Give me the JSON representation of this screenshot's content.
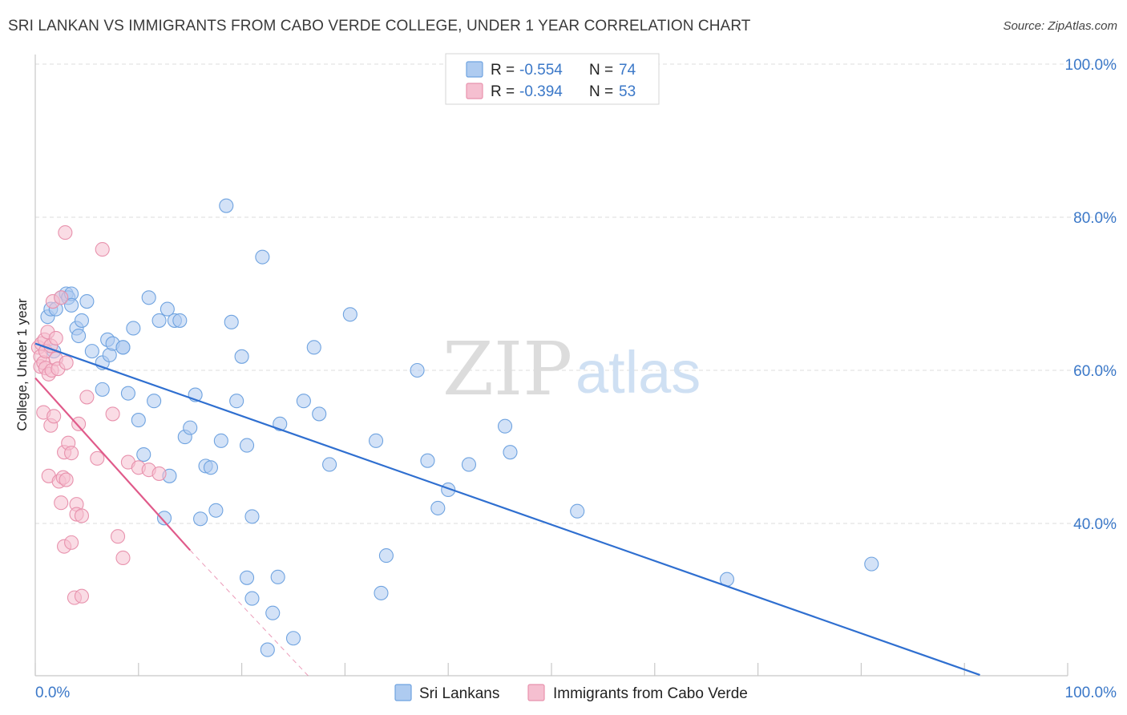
{
  "chart_data": {
    "type": "scatter",
    "title": "SRI LANKAN VS IMMIGRANTS FROM CABO VERDE COLLEGE, UNDER 1 YEAR CORRELATION CHART",
    "source": "Source: ZipAtlas.com",
    "xlabel": "",
    "ylabel": "College, Under 1 year",
    "xlim": [
      0,
      100
    ],
    "ylim": [
      20,
      101
    ],
    "x_tick_labels": [
      {
        "value": 0,
        "label": "0.0%"
      },
      {
        "value": 100,
        "label": "100.0%"
      }
    ],
    "y_tick_labels": [
      {
        "value": 40,
        "label": "40.0%"
      },
      {
        "value": 60,
        "label": "60.0%"
      },
      {
        "value": 80,
        "label": "80.0%"
      },
      {
        "value": 100,
        "label": "100.0%"
      }
    ],
    "watermark": {
      "part1": "ZIP",
      "part2": "atlas"
    },
    "legend": {
      "r_label": "R =",
      "n_label": "N =",
      "entries": [
        {
          "name": "Sri Lankans",
          "r": "-0.554",
          "n": "74"
        },
        {
          "name": "Immigrants from Cabo Verde",
          "r": "-0.394",
          "n": "53"
        }
      ]
    },
    "series": [
      {
        "name": "Sri Lankans",
        "color": "#6fa3e0",
        "fill": "#aecbf0",
        "line_color": "#2f6fd0",
        "trend": {
          "x": [
            0,
            91.5
          ],
          "y": [
            63.5,
            20.2
          ]
        },
        "points": [
          [
            1.2,
            67.0
          ],
          [
            1.5,
            68.0
          ],
          [
            1.8,
            62.5
          ],
          [
            2.0,
            68.0
          ],
          [
            2.5,
            69.5
          ],
          [
            3.0,
            70.0
          ],
          [
            3.2,
            69.5
          ],
          [
            3.5,
            70.0
          ],
          [
            3.5,
            68.5
          ],
          [
            4.0,
            65.5
          ],
          [
            4.2,
            64.5
          ],
          [
            4.5,
            66.5
          ],
          [
            5.0,
            69.0
          ],
          [
            5.5,
            62.5
          ],
          [
            6.5,
            61.0
          ],
          [
            6.5,
            57.5
          ],
          [
            7.0,
            64.0
          ],
          [
            7.2,
            62.0
          ],
          [
            7.5,
            63.5
          ],
          [
            8.5,
            63.0
          ],
          [
            8.5,
            63.0
          ],
          [
            9.0,
            57.0
          ],
          [
            9.5,
            65.5
          ],
          [
            10.0,
            53.5
          ],
          [
            10.5,
            49.0
          ],
          [
            11.0,
            69.5
          ],
          [
            11.5,
            56.0
          ],
          [
            12.0,
            66.5
          ],
          [
            12.5,
            40.7
          ],
          [
            12.8,
            68.0
          ],
          [
            13.0,
            46.2
          ],
          [
            13.5,
            66.5
          ],
          [
            14.0,
            66.5
          ],
          [
            14.5,
            51.3
          ],
          [
            15.0,
            52.5
          ],
          [
            15.5,
            56.8
          ],
          [
            16.0,
            40.6
          ],
          [
            16.5,
            47.5
          ],
          [
            17.0,
            47.3
          ],
          [
            17.5,
            41.7
          ],
          [
            18.0,
            50.8
          ],
          [
            18.5,
            81.5
          ],
          [
            19.0,
            66.3
          ],
          [
            19.5,
            56.0
          ],
          [
            20.0,
            61.8
          ],
          [
            20.5,
            50.2
          ],
          [
            20.5,
            32.9
          ],
          [
            21.0,
            40.9
          ],
          [
            21.0,
            30.2
          ],
          [
            22.0,
            74.8
          ],
          [
            22.5,
            23.5
          ],
          [
            23.0,
            28.3
          ],
          [
            23.5,
            33.0
          ],
          [
            23.7,
            53.0
          ],
          [
            25.0,
            25.0
          ],
          [
            26.0,
            56.0
          ],
          [
            27.0,
            63.0
          ],
          [
            27.5,
            54.3
          ],
          [
            28.5,
            47.7
          ],
          [
            30.5,
            67.3
          ],
          [
            33.0,
            50.8
          ],
          [
            33.5,
            30.9
          ],
          [
            34.0,
            35.8
          ],
          [
            37.0,
            60.0
          ],
          [
            38.0,
            48.2
          ],
          [
            39.0,
            42.0
          ],
          [
            40.0,
            44.4
          ],
          [
            42.0,
            47.7
          ],
          [
            45.5,
            52.7
          ],
          [
            46.0,
            49.3
          ],
          [
            52.5,
            41.6
          ],
          [
            67.0,
            32.7
          ],
          [
            81.0,
            34.7
          ]
        ]
      },
      {
        "name": "Immigrants from Cabo Verde",
        "color": "#e892ad",
        "fill": "#f5bfd0",
        "line_color": "#e05a8a",
        "trend": {
          "x": [
            0,
            15
          ],
          "y": [
            59.0,
            36.5
          ]
        },
        "trend_dashed": {
          "x": [
            15,
            26.5
          ],
          "y": [
            36.5,
            20
          ]
        },
        "points": [
          [
            0.3,
            63.0
          ],
          [
            0.5,
            61.8
          ],
          [
            0.5,
            60.5
          ],
          [
            0.6,
            63.5
          ],
          [
            0.8,
            61.0
          ],
          [
            0.8,
            54.5
          ],
          [
            0.9,
            64.0
          ],
          [
            1.0,
            62.5
          ],
          [
            1.0,
            60.3
          ],
          [
            1.2,
            65.0
          ],
          [
            1.3,
            59.5
          ],
          [
            1.3,
            46.2
          ],
          [
            1.5,
            52.8
          ],
          [
            1.5,
            63.2
          ],
          [
            1.6,
            60.0
          ],
          [
            1.7,
            69.0
          ],
          [
            1.8,
            54.0
          ],
          [
            2.0,
            61.5
          ],
          [
            2.0,
            64.2
          ],
          [
            2.2,
            60.2
          ],
          [
            2.3,
            45.5
          ],
          [
            2.5,
            69.5
          ],
          [
            2.5,
            42.7
          ],
          [
            2.7,
            46.0
          ],
          [
            2.8,
            49.3
          ],
          [
            2.8,
            37.0
          ],
          [
            2.9,
            78.0
          ],
          [
            3.0,
            45.7
          ],
          [
            3.0,
            61.0
          ],
          [
            3.2,
            50.5
          ],
          [
            3.5,
            49.2
          ],
          [
            3.5,
            37.5
          ],
          [
            3.8,
            30.3
          ],
          [
            4.0,
            42.5
          ],
          [
            4.0,
            41.2
          ],
          [
            4.2,
            53.0
          ],
          [
            4.5,
            41.0
          ],
          [
            4.5,
            30.5
          ],
          [
            5.0,
            56.5
          ],
          [
            6.0,
            48.5
          ],
          [
            6.5,
            75.8
          ],
          [
            7.5,
            54.3
          ],
          [
            8.0,
            38.3
          ],
          [
            8.5,
            35.5
          ],
          [
            9.0,
            48.0
          ],
          [
            10.0,
            47.3
          ],
          [
            11.0,
            47.0
          ],
          [
            12.0,
            46.5
          ]
        ]
      }
    ]
  }
}
